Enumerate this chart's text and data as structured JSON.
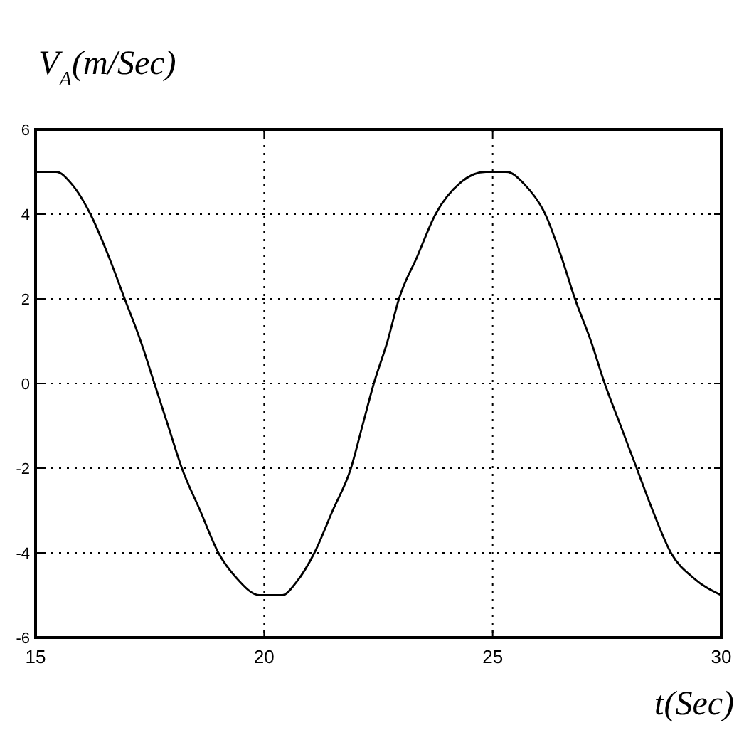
{
  "chart_data": {
    "type": "line",
    "xlabel": "t(Sec)",
    "ylabel": "V$_{A}$(m/Sec)",
    "x": [
      15,
      15.45,
      15.8,
      16.2,
      16.6,
      16.95,
      17.3,
      17.6,
      17.9,
      18.2,
      18.6,
      19.0,
      19.4,
      19.9,
      20.4,
      20.7,
      21.1,
      21.5,
      21.9,
      22.15,
      22.4,
      22.7,
      22.95,
      23.35,
      23.75,
      24.3,
      24.85,
      25.3,
      25.7,
      26.15,
      26.5,
      26.8,
      27.15,
      27.45,
      27.8,
      28.15,
      28.5,
      28.9,
      29.4,
      30
    ],
    "values": [
      5,
      5,
      4.7,
      4,
      3,
      2,
      1,
      0,
      -1,
      -2,
      -3,
      -4,
      -4.6,
      -5,
      -5,
      -4.7,
      -4,
      -3,
      -2,
      -1,
      0,
      1,
      2,
      3,
      4,
      4.75,
      5,
      5,
      4.7,
      4,
      3,
      2,
      1,
      0,
      -1,
      -2,
      -3,
      -4,
      -4.6,
      -5
    ],
    "color": "#000000",
    "xlim": [
      15,
      30
    ],
    "ylim": [
      -6,
      6
    ],
    "xticks": [
      15,
      20,
      25,
      30
    ],
    "yticks": [
      -6,
      -4,
      -2,
      0,
      2,
      4,
      6
    ],
    "grid": true
  }
}
